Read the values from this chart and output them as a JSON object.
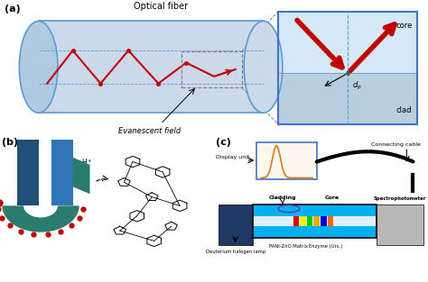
{
  "panel_a_label": "(a)",
  "panel_b_label": "(b)",
  "panel_c_label": "(c)",
  "optical_fiber_text": "Optical fiber",
  "evanescent_field_text": "Evanescent field",
  "core_text": "core",
  "clad_text": "clad",
  "dp_text": "d_p",
  "display_unit_text": "Display unit",
  "connecting_cable_text": "Connecting cable",
  "deuterium_text": "Deuterium halogen lamp",
  "cladding_text": "Cladding",
  "core2_text": "Core",
  "spectrophotometer_text": "Spectrophotometer",
  "pani_text": "PANI-ZnO Matrix",
  "enzyme_text": "Enzyme (Urs.)",
  "fiber_color": "#ccd9ea",
  "fiber_edge_color": "#5b9bd5",
  "fiber_dark": "#a8c0d8",
  "inset_bg_upper": "#d6e8f5",
  "inset_bg_lower": "#b8cfe0",
  "arrow_color": "#c00000",
  "dark_blue": "#1f3864",
  "teal_color": "#2a7d6e",
  "red_dots_color": "#c00000",
  "lamp_color": "#1f3864",
  "clad_color": "#00b0f0",
  "spectro_color": "#b0b0b0",
  "bg_color": "#ffffff"
}
